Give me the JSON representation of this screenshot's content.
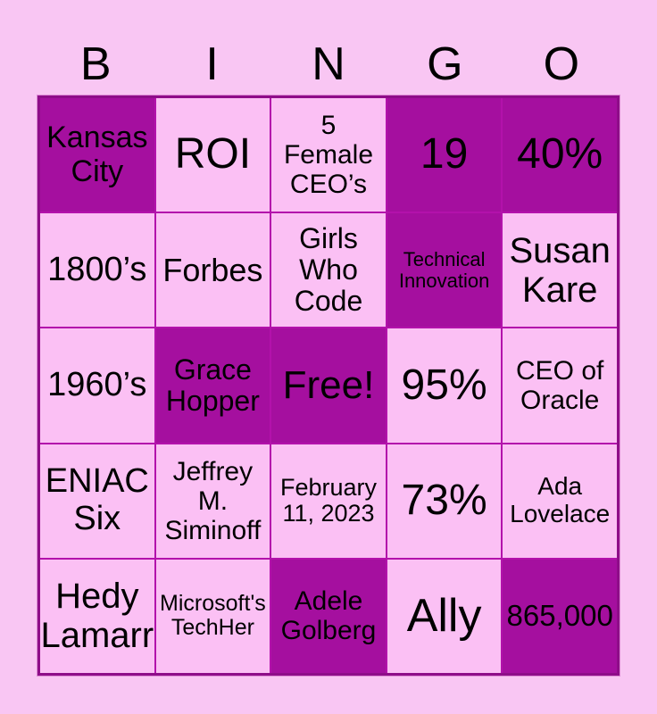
{
  "header": {
    "letters": [
      "B",
      "I",
      "N",
      "G",
      "O"
    ]
  },
  "colors": {
    "page_background": "#f9c6f3",
    "cell_light": "#fbc0f4",
    "cell_highlight": "#a50f9f",
    "grid_line": "#b312ab",
    "outer_border": "#8f0d89",
    "text": "#000000"
  },
  "grid": {
    "rows": 5,
    "cols": 5,
    "cells": [
      {
        "text": "Kansas\nCity",
        "highlighted": true
      },
      {
        "text": "ROI",
        "highlighted": false
      },
      {
        "text": "5\nFemale\nCEO’s",
        "highlighted": false
      },
      {
        "text": "19",
        "highlighted": true
      },
      {
        "text": "40%",
        "highlighted": true
      },
      {
        "text": "1800’s",
        "highlighted": false
      },
      {
        "text": "Forbes",
        "highlighted": false
      },
      {
        "text": "Girls\nWho\nCode",
        "highlighted": false
      },
      {
        "text": "Technical\nInnovation",
        "highlighted": true
      },
      {
        "text": "Susan\nKare",
        "highlighted": false
      },
      {
        "text": "1960’s",
        "highlighted": false
      },
      {
        "text": "Grace\nHopper",
        "highlighted": true
      },
      {
        "text": "Free!",
        "highlighted": true
      },
      {
        "text": "95%",
        "highlighted": false
      },
      {
        "text": "CEO of\nOracle",
        "highlighted": false
      },
      {
        "text": "ENIAC\nSix",
        "highlighted": false
      },
      {
        "text": "Jeffrey\nM.\nSiminoff",
        "highlighted": false
      },
      {
        "text": "February\n11, 2023",
        "highlighted": false
      },
      {
        "text": "73%",
        "highlighted": false
      },
      {
        "text": "Ada\nLovelace",
        "highlighted": false
      },
      {
        "text": "Hedy\nLamarr",
        "highlighted": false
      },
      {
        "text": "Microsoft's\nTechHer",
        "highlighted": false
      },
      {
        "text": "Adele\nGolberg",
        "highlighted": true
      },
      {
        "text": "Ally",
        "highlighted": false
      },
      {
        "text": "865,000",
        "highlighted": true
      }
    ]
  }
}
